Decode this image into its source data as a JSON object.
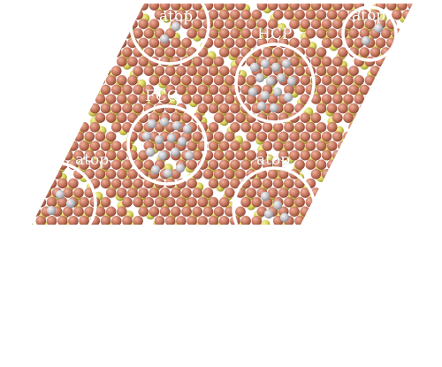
{
  "figure": {
    "description_labels": {
      "atop_top_center": "atop",
      "atop_top_right": "atop",
      "hcp": "HCP",
      "fcc": "FCC",
      "atop_left": "atop",
      "atop_bottom_center": "atop"
    }
  },
  "colors": {
    "background": "#ffffff",
    "copper_atom": "#c97a62",
    "copper_atom_shadow": "#8f4a38",
    "sulfur_atom": "#d8d25a",
    "sulfur_atom_shadow": "#9c9630",
    "adsorbate_atom": "#c8c8cc",
    "adsorbate_atom_shadow": "#8a8a90",
    "circle_outline": "#ffffff"
  },
  "atom_species": [
    "copper-atom",
    "sulfur-atom",
    "adsorbate-atom"
  ],
  "site_types": [
    "atop",
    "HCP",
    "FCC"
  ]
}
